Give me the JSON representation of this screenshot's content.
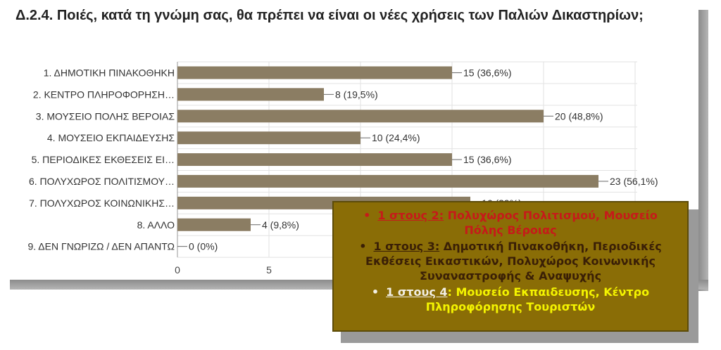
{
  "title": "Δ.2.4. Ποιές, κατά τη γνώμη σας, θα πρέπει να είναι οι νέες χρήσεις των Παλιών Δικαστηρίων;",
  "colors": {
    "bar": "#8b7d63",
    "callout_bg": "#8a6d06",
    "red": "#c61a1a",
    "yellow": "#f4f400",
    "dark": "#3a1f06"
  },
  "chart_data": {
    "type": "bar",
    "orientation": "horizontal",
    "categories": [
      "1. ΔΗΜΟΤΙΚΗ ΠΙΝΑΚΟΘΗΚΗ",
      "2. ΚΕΝΤΡΟ ΠΛΗΡΟΦΟΡΗΣΗ…",
      "3. ΜΟΥΣΕΙΟ ΠΟΛΗΣ ΒΕΡΟΙΑΣ",
      "4. ΜΟΥΣΕΙΟ ΕΚΠΑΙΔΕΥΣΗΣ",
      "5. ΠΕΡΙΟΔΙΚΕΣ ΕΚΘΕΣΕΙΣ ΕΙ…",
      "6. ΠΟΛΥΧΩΡΟΣ ΠΟΛΙΤΙΣΜΟΥ…",
      "7. ΠΟΛΥΧΩΡΟΣ ΚΟΙΝΩΝΙΚΗΣ…",
      "8. ΑΛΛΟ",
      "9. ΔΕΝ ΓΝΩΡΙΖΩ / ΔΕΝ ΑΠΑΝΤΩ"
    ],
    "values": [
      15,
      8,
      20,
      10,
      15,
      23,
      16,
      4,
      0
    ],
    "data_labels": [
      "15 (36,6%)",
      "8 (19,5%)",
      "20 (48,8%)",
      "10 (24,4%)",
      "15 (36,6%)",
      "23 (56,1%)",
      "16 (39%)",
      "4 (9,8%)",
      "0 (0%)"
    ],
    "x_ticks": [
      0,
      5
    ],
    "xlim": [
      0,
      25
    ],
    "grid": true
  },
  "callout": {
    "line1_prefix": "1 στους 2:",
    "line1_text": " Πολυχώρος Πολιτισμού, Μουσείο Πόλης Βέροιας",
    "line2_prefix": "1 στους 3:",
    "line2_text": " Δημοτική Πινακοθήκη,  Περιοδικές Εκθέσεις Εικαστικών,  Πολυχώρος Κοινωνικής Συναναστροφής & Αναψυχής",
    "line3_prefix": "1 στους 4",
    "line3_colon": ":",
    "line3_text": " Μουσείο Εκπαιδευσης, Κέντρο Πληροφόρησης Τουριστών",
    "bullet": "•"
  }
}
